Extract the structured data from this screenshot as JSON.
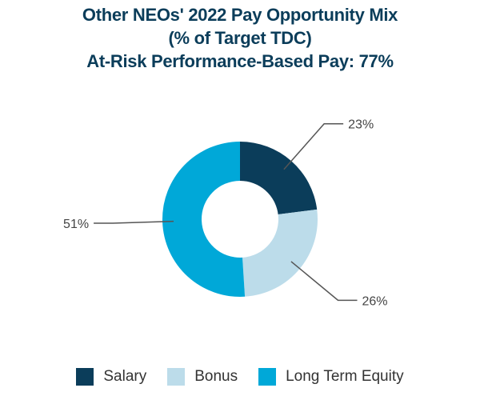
{
  "chart_data": {
    "type": "pie",
    "title_lines": [
      "Other NEOs' 2022 Pay Opportunity Mix",
      "(% of Target TDC)",
      "At-Risk Performance-Based Pay: 77%"
    ],
    "donut": true,
    "categories": [
      "Salary",
      "Bonus",
      "Long Term Equity"
    ],
    "values": [
      23,
      26,
      51
    ],
    "labels": [
      "23%",
      "26%",
      "51%"
    ],
    "colors": [
      "#0b3d5a",
      "#bcdcea",
      "#00a8d8"
    ],
    "legend_position": "bottom"
  }
}
